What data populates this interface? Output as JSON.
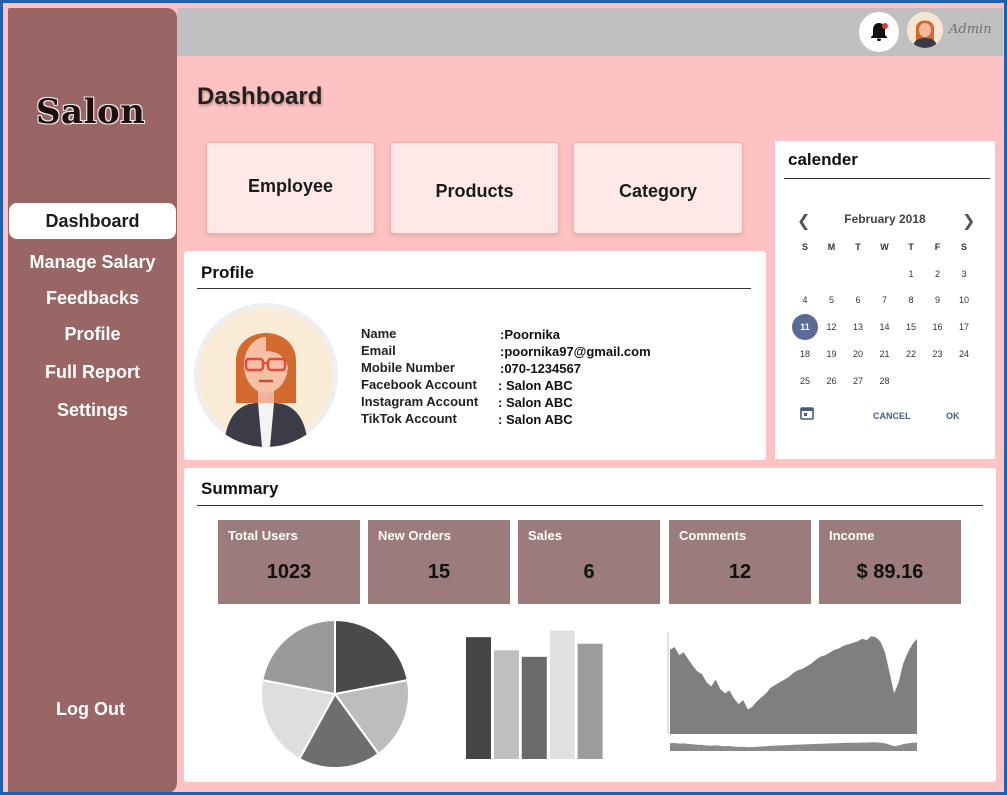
{
  "app": {
    "logo": "Salon"
  },
  "sidebar": {
    "items": [
      {
        "label": "Dashboard"
      },
      {
        "label": "Manage Salary"
      },
      {
        "label": "Feedbacks"
      },
      {
        "label": "Profile"
      },
      {
        "label": "Full Report"
      },
      {
        "label": "Settings"
      }
    ],
    "logout": "Log Out"
  },
  "topbar": {
    "user_label": "Admin"
  },
  "page": {
    "title": "Dashboard"
  },
  "quick_cards": [
    {
      "label": "Employee"
    },
    {
      "label": "Products"
    },
    {
      "label": "Category"
    }
  ],
  "calendar": {
    "title": "calender",
    "month": "February 2018",
    "weekdays": [
      "S",
      "M",
      "T",
      "W",
      "T",
      "F",
      "S"
    ],
    "days": [
      "1",
      "2",
      "3",
      "4",
      "5",
      "6",
      "7",
      "8",
      "9",
      "10",
      "11",
      "12",
      "13",
      "14",
      "15",
      "16",
      "17",
      "18",
      "19",
      "20",
      "21",
      "22",
      "23",
      "24",
      "25",
      "26",
      "27",
      "28"
    ],
    "selected_day": "11",
    "cancel_label": "CANCEL",
    "ok_label": "OK"
  },
  "profile": {
    "title": "Profile",
    "fields": [
      {
        "label": "Name",
        "value": ":Poornika"
      },
      {
        "label": "Email",
        "value": ":poornika97@gmail.com"
      },
      {
        "label": "Mobile Number",
        "value": ":070-1234567"
      },
      {
        "label": "Facebook Account",
        "value": ": Salon ABC"
      },
      {
        "label": "Instagram Account",
        "value": ": Salon ABC"
      },
      {
        "label": "TikTok Account",
        "value": ": Salon ABC"
      }
    ]
  },
  "summary": {
    "title": "Summary",
    "stats": [
      {
        "label": "Total Users",
        "value": "1023"
      },
      {
        "label": "New Orders",
        "value": "15"
      },
      {
        "label": "Sales",
        "value": "6"
      },
      {
        "label": "Comments",
        "value": "12"
      },
      {
        "label": "Income",
        "value": "$ 89.16"
      }
    ]
  },
  "colors": {
    "sidebar": "#9a6565",
    "page_background": "#ffc2c2",
    "stat_card": "#9b7b7b",
    "topbar": "#c0c0c0",
    "calendar_selected": "#5b6b97"
  },
  "chart_data": [
    {
      "type": "pie",
      "values": [
        22,
        18,
        18,
        20,
        22
      ],
      "colors": [
        "#4a4a4a",
        "#bdbdbd",
        "#6e6e6e",
        "#dedede",
        "#9a9a9a"
      ]
    },
    {
      "type": "bar",
      "values": [
        93,
        83,
        78,
        98,
        88
      ],
      "colors": [
        "#454545",
        "#bfbfbf",
        "#6a6a6a",
        "#e0e0e0",
        "#9c9c9c"
      ]
    },
    {
      "type": "area",
      "values": [
        62,
        64,
        58,
        60,
        55,
        50,
        46,
        44,
        38,
        35,
        40,
        33,
        30,
        32,
        26,
        22,
        25,
        18,
        20,
        24,
        27,
        30,
        34,
        36,
        38,
        40,
        42,
        45,
        47,
        48,
        50,
        52,
        55,
        57,
        58,
        60,
        62,
        63,
        65,
        66,
        67,
        68,
        70,
        69,
        72,
        71,
        68,
        60,
        45,
        30,
        38,
        52,
        60,
        66,
        70
      ],
      "color": "#7f7f7f"
    }
  ]
}
